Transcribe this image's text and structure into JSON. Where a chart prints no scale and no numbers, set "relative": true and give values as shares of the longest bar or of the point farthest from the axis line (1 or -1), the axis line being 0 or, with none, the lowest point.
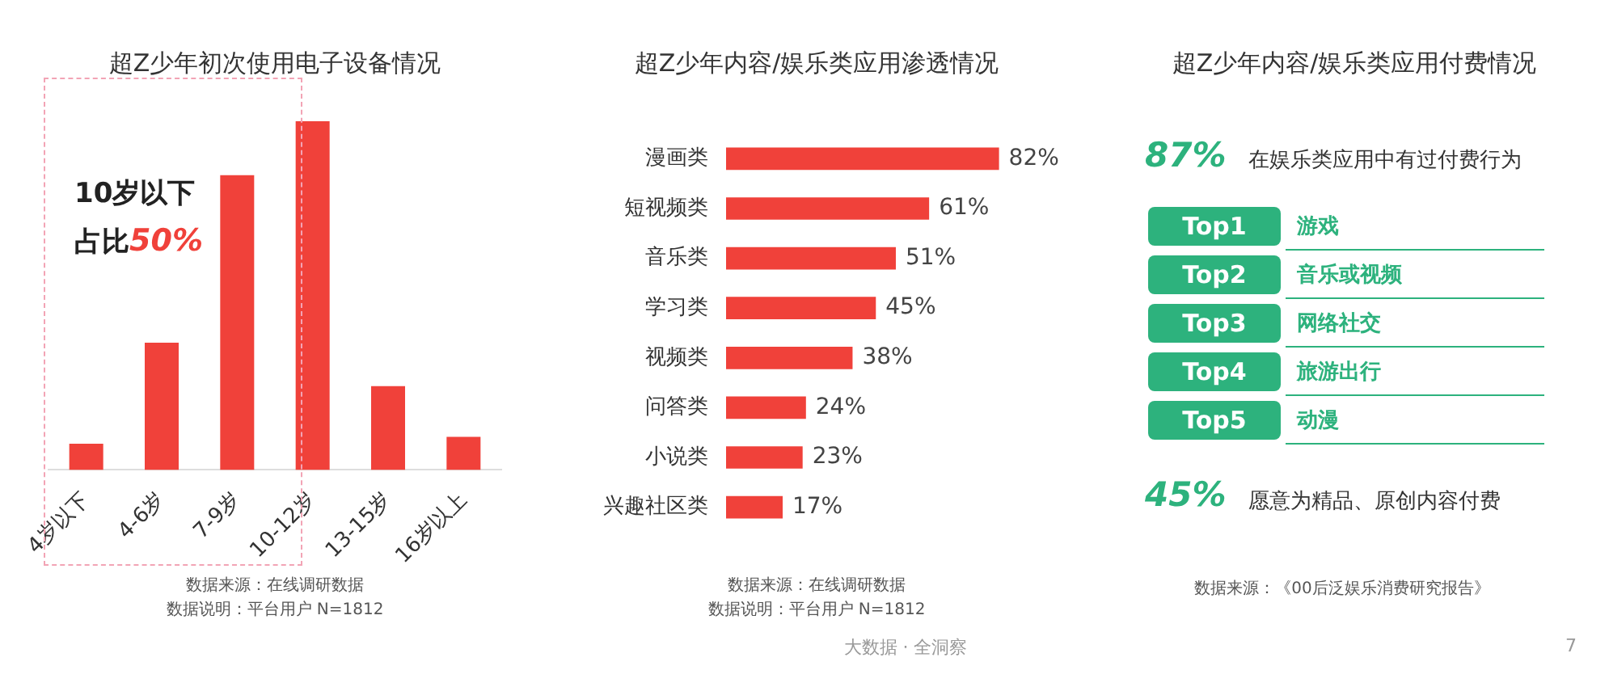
{
  "chart_data": [
    {
      "type": "bar",
      "title": "超Z少年初次使用电子设备情况",
      "relative": true,
      "categories": [
        "4岁以下",
        "4-6岁",
        "7-9岁",
        "10-12岁",
        "13-15岁",
        "16岁以上"
      ],
      "values": [
        0.075,
        0.365,
        0.845,
        1,
        0.24,
        0.095
      ],
      "color": "#f0413a",
      "annotations": [
        "10岁以下",
        "占比",
        "50%",
        "数据来源：在线调研数据",
        "数据说明：平台用户 N=1812"
      ]
    },
    {
      "type": "bar",
      "title": "超Z少年内容/娱乐类应用渗透情况",
      "orientation": "horizontal",
      "categories": [
        "漫画类",
        "短视频类",
        "音乐类",
        "学习类",
        "视频类",
        "问答类",
        "小说类",
        "兴趣社区类"
      ],
      "values": [
        82,
        61,
        51,
        45,
        38,
        24,
        23,
        17
      ],
      "value_labels": [
        "82%",
        "61%",
        "51%",
        "45%",
        "38%",
        "24%",
        "23%",
        "17%"
      ],
      "color": "#f0413a",
      "annotations": [
        "数据来源：在线调研数据",
        "数据说明：平台用户 N=1812"
      ]
    },
    {
      "type": "other",
      "title": "超Z少年内容/娱乐类应用付费情况",
      "color": "#2db27d",
      "annotations": [
        "87%",
        "在娱乐类应用中有过付费行为",
        "Top1",
        "游戏",
        "Top2",
        "音乐或视频",
        "Top3",
        "网络社交",
        "Top4",
        "旅游出行",
        "Top5",
        "动漫",
        "45%",
        "愿意为精品、原创内容付费",
        "数据来源：《00后泛娱乐消费研究报告》",
        "大数据 · 全洞察",
        "7"
      ]
    }
  ]
}
